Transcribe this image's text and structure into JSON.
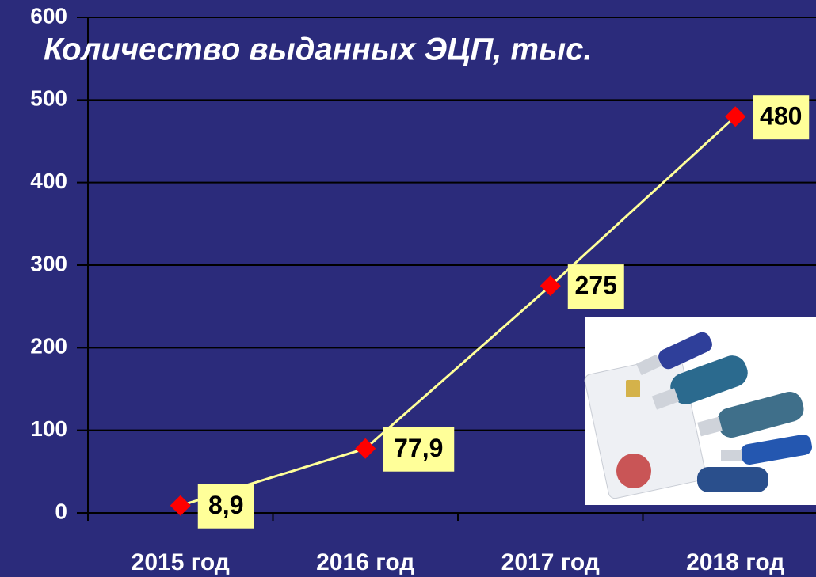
{
  "chart_data": {
    "type": "line",
    "title": "Количество выданных ЭЦП, тыс.",
    "categories": [
      "2015 год",
      "2016 год",
      "2017 год",
      "2018 год"
    ],
    "values": [
      8.9,
      77.9,
      275,
      480
    ],
    "value_labels": [
      "8,9",
      "77,9",
      "275",
      "480"
    ],
    "color": "#ffff99",
    "marker_color": "#ff0000",
    "ylim": [
      0,
      600
    ],
    "yticks": [
      0,
      100,
      200,
      300,
      400,
      500,
      600
    ],
    "grid": true
  }
}
